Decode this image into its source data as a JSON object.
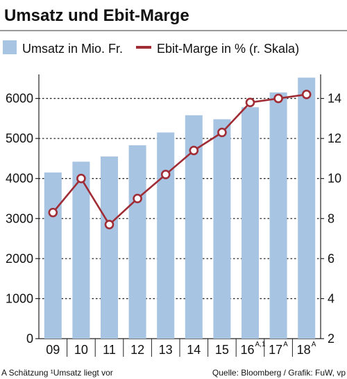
{
  "chart_data": {
    "type": "bar",
    "title": "Umsatz und Ebit-Marge",
    "categories": [
      "09",
      "10",
      "11",
      "12",
      "13",
      "14",
      "15",
      "16",
      "17",
      "18"
    ],
    "category_superscripts": [
      "",
      "",
      "",
      "",
      "",
      "",
      "",
      "A,1",
      "A",
      "A"
    ],
    "series": [
      {
        "name": "Umsatz in Mio. Fr.",
        "type": "bar",
        "axis": "left",
        "color": "#a7c4e2",
        "values": [
          4150,
          4420,
          4550,
          4830,
          5150,
          5580,
          5480,
          5780,
          6150,
          6520
        ]
      },
      {
        "name": "Ebit-Marge in % (r. Skala)",
        "type": "line",
        "axis": "right",
        "color": "#a02d36",
        "values": [
          8.3,
          10.0,
          7.7,
          9.0,
          10.2,
          11.4,
          12.3,
          13.8,
          14.0,
          14.2
        ]
      }
    ],
    "left_axis": {
      "min": 0,
      "max": 6600,
      "ticks": [
        0,
        1000,
        2000,
        3000,
        4000,
        5000,
        6000
      ]
    },
    "right_axis": {
      "min": 2,
      "max": 15.2,
      "ticks": [
        2,
        4,
        6,
        8,
        10,
        12,
        14
      ]
    },
    "grid": "dotted horizontal lines at left-axis ticks",
    "legend_placement": "top",
    "footnote_left": "A Schätzung  ¹Umsatz liegt vor",
    "footnote_right": "Quelle: Bloomberg / Grafik: FuW, vp"
  }
}
